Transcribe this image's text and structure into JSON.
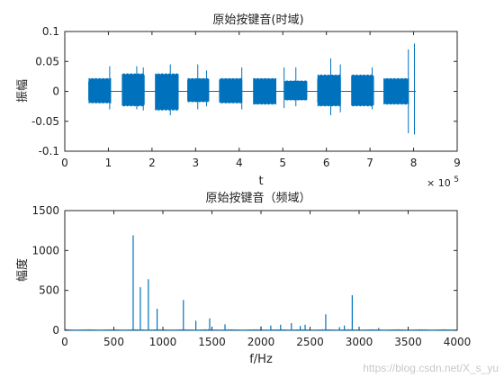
{
  "chart_data": [
    {
      "type": "line",
      "title": "原始按键音(时域)",
      "xlabel": "t",
      "ylabel": "振幅",
      "xlim": [
        0,
        9
      ],
      "ylim": [
        -0.1,
        0.1
      ],
      "x_ticks": [
        0,
        1,
        2,
        3,
        4,
        5,
        6,
        7,
        8,
        9
      ],
      "y_ticks": [
        -0.1,
        -0.05,
        0,
        0.05,
        0.1
      ],
      "x_tick_labels": [
        "0",
        "1",
        "2",
        "3",
        "4",
        "5",
        "6",
        "7",
        "8",
        "9"
      ],
      "y_tick_labels": [
        "-0.1",
        "-0.05",
        "0",
        "0.05",
        "0.1"
      ],
      "x_exponent_base": "× 10",
      "x_exponent_power": "5",
      "grid": false,
      "color": "#0072BD",
      "series": [
        {
          "segments": [
            {
              "start": 0.55,
              "end": 1.05,
              "amp_pos": 0.022,
              "amp_neg": -0.02
            },
            {
              "start": 1.32,
              "end": 1.82,
              "amp_pos": 0.03,
              "amp_neg": -0.025
            },
            {
              "start": 2.08,
              "end": 2.6,
              "amp_pos": 0.03,
              "amp_neg": -0.032
            },
            {
              "start": 2.82,
              "end": 3.3,
              "amp_pos": 0.022,
              "amp_neg": -0.018
            },
            {
              "start": 3.55,
              "end": 4.06,
              "amp_pos": 0.022,
              "amp_neg": -0.02
            },
            {
              "start": 4.33,
              "end": 4.84,
              "amp_pos": 0.022,
              "amp_neg": -0.022
            },
            {
              "start": 5.05,
              "end": 5.55,
              "amp_pos": 0.018,
              "amp_neg": -0.015
            },
            {
              "start": 5.8,
              "end": 6.32,
              "amp_pos": 0.028,
              "amp_neg": -0.025
            },
            {
              "start": 6.58,
              "end": 7.08,
              "amp_pos": 0.028,
              "amp_neg": -0.025
            },
            {
              "start": 7.32,
              "end": 7.88,
              "amp_pos": 0.022,
              "amp_neg": -0.022
            }
          ],
          "spikes": [
            {
              "x": 1.03,
              "top": 0.042,
              "bottom": -0.03
            },
            {
              "x": 1.65,
              "top": 0.042,
              "bottom": -0.03
            },
            {
              "x": 1.8,
              "top": 0.04,
              "bottom": -0.032
            },
            {
              "x": 2.42,
              "top": 0.045,
              "bottom": -0.04
            },
            {
              "x": 3.05,
              "top": 0.045,
              "bottom": -0.03
            },
            {
              "x": 3.25,
              "top": 0.035,
              "bottom": -0.025
            },
            {
              "x": 4.06,
              "top": 0.04,
              "bottom": -0.03
            },
            {
              "x": 5.03,
              "top": 0.04,
              "bottom": -0.028
            },
            {
              "x": 5.3,
              "top": 0.04,
              "bottom": -0.025
            },
            {
              "x": 6.1,
              "top": 0.055,
              "bottom": -0.04
            },
            {
              "x": 6.32,
              "top": 0.045,
              "bottom": -0.035
            },
            {
              "x": 7.05,
              "top": 0.04,
              "bottom": -0.03
            },
            {
              "x": 7.88,
              "top": 0.07,
              "bottom": -0.07
            },
            {
              "x": 8.02,
              "top": 0.08,
              "bottom": -0.072
            }
          ]
        }
      ]
    },
    {
      "type": "line",
      "title": "原始按键音（频域）",
      "xlabel": "f/Hz",
      "ylabel": "幅度",
      "xlim": [
        0,
        4000
      ],
      "ylim": [
        0,
        1500
      ],
      "x_ticks": [
        0,
        500,
        1000,
        1500,
        2000,
        2500,
        3000,
        3500,
        4000
      ],
      "y_ticks": [
        0,
        500,
        1000,
        1500
      ],
      "x_tick_labels": [
        "0",
        "500",
        "1000",
        "1500",
        "2000",
        "2500",
        "3000",
        "3500",
        "4000"
      ],
      "y_tick_labels": [
        "0",
        "500",
        "1000",
        "1500"
      ],
      "grid": false,
      "color": "#0072BD",
      "series": [
        {
          "peaks": [
            {
              "x": 697,
              "y": 1190
            },
            {
              "x": 770,
              "y": 540
            },
            {
              "x": 852,
              "y": 640
            },
            {
              "x": 941,
              "y": 270
            },
            {
              "x": 1209,
              "y": 380
            },
            {
              "x": 1336,
              "y": 120
            },
            {
              "x": 1477,
              "y": 150
            },
            {
              "x": 1633,
              "y": 75
            },
            {
              "x": 2000,
              "y": 50
            },
            {
              "x": 2100,
              "y": 60
            },
            {
              "x": 2200,
              "y": 70
            },
            {
              "x": 2310,
              "y": 90
            },
            {
              "x": 2400,
              "y": 55
            },
            {
              "x": 2450,
              "y": 70
            },
            {
              "x": 2660,
              "y": 200
            },
            {
              "x": 2800,
              "y": 40
            },
            {
              "x": 2850,
              "y": 60
            },
            {
              "x": 2930,
              "y": 440
            },
            {
              "x": 3200,
              "y": 30
            }
          ]
        }
      ]
    }
  ],
  "watermark": "https://blog.csdn.net/X_s_yu"
}
